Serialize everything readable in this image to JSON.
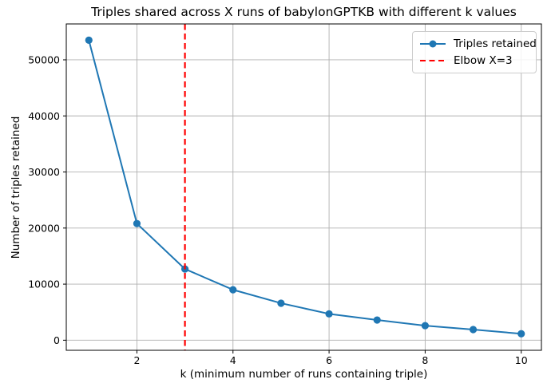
{
  "chart_data": {
    "type": "line",
    "title": "Triples shared across X runs of babylonGPTKB with different k values",
    "xlabel": "k (minimum number of runs containing triple)",
    "ylabel": "Number of triples retained",
    "x": [
      1,
      2,
      3,
      4,
      5,
      6,
      7,
      8,
      9,
      10
    ],
    "series": [
      {
        "name": "Triples retained",
        "values": [
          53500,
          20800,
          12700,
          9000,
          6600,
          4700,
          3600,
          2600,
          1900,
          1150
        ],
        "color": "#1f77b4",
        "marker": "circle"
      }
    ],
    "vline": {
      "x": 3,
      "label": "Elbow X=3",
      "color": "#ff0000",
      "style": "dashed"
    },
    "x_ticks": [
      2,
      4,
      6,
      8,
      10
    ],
    "y_ticks": [
      0,
      10000,
      20000,
      30000,
      40000,
      50000
    ],
    "xlim": [
      0.53,
      10.42
    ],
    "ylim": [
      -1800,
      56400
    ],
    "grid": true,
    "grid_color": "#b0b0b0",
    "spine_color": "#000000",
    "legend_position": "upper right",
    "background_color": "#ffffff"
  }
}
